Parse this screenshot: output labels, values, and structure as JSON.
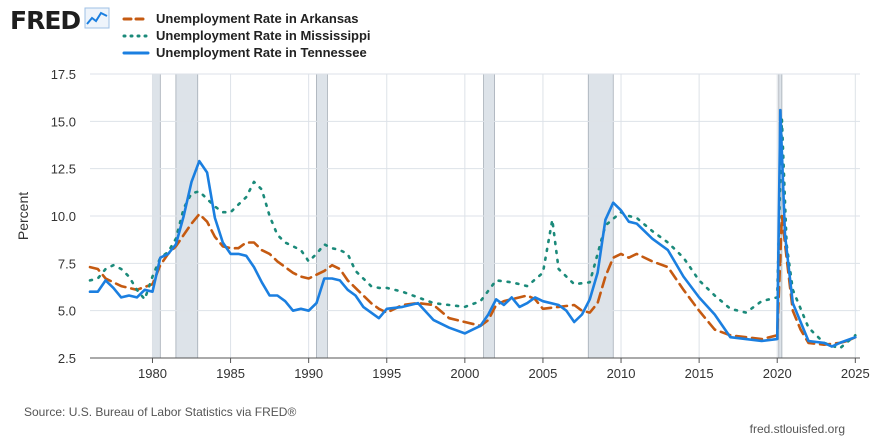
{
  "logo": {
    "text": "FRED",
    "icon": "line-chart-icon"
  },
  "footer": {
    "source": "Source: U.S. Bureau of Labor Statistics via FRED®",
    "site": "fred.stlouisfed.org"
  },
  "colors": {
    "arkansas": "#c55a11",
    "mississippi": "#1b8a7a",
    "tennessee": "#1b7fe0",
    "recession": "#dde3e9",
    "grid": "#dde2e8"
  },
  "chart_data": {
    "type": "line",
    "ylabel": "Percent",
    "xlabel": "",
    "xlim": [
      1976,
      2025.3
    ],
    "ylim": [
      2.5,
      17.5
    ],
    "yticks": [
      2.5,
      5.0,
      7.5,
      10.0,
      12.5,
      15.0,
      17.5
    ],
    "ytick_labels": [
      "2.5",
      "5.0",
      "7.5",
      "10.0",
      "12.5",
      "15.0",
      "17.5"
    ],
    "xticks": [
      1980,
      1985,
      1990,
      1995,
      2000,
      2005,
      2010,
      2015,
      2020,
      2025
    ],
    "xtick_labels": [
      "1980",
      "1985",
      "1990",
      "1995",
      "2000",
      "2005",
      "2010",
      "2015",
      "2020",
      "2025"
    ],
    "grid": true,
    "legend_position": "top-left",
    "recessions": [
      [
        1980.0,
        1980.5
      ],
      [
        1981.5,
        1982.9
      ],
      [
        1990.5,
        1991.2
      ],
      [
        2001.2,
        2001.9
      ],
      [
        2007.9,
        2009.5
      ],
      [
        2020.1,
        2020.3
      ]
    ],
    "series": [
      {
        "name": "Unemployment Rate in Arkansas",
        "style": "dashed",
        "color": "#c55a11",
        "points": [
          [
            1976,
            7.3
          ],
          [
            1976.5,
            7.2
          ],
          [
            1977,
            6.7
          ],
          [
            1978,
            6.3
          ],
          [
            1979,
            6.1
          ],
          [
            1980,
            6.4
          ],
          [
            1980.5,
            7.4
          ],
          [
            1981,
            8.0
          ],
          [
            1981.5,
            8.4
          ],
          [
            1982,
            9.0
          ],
          [
            1982.5,
            9.6
          ],
          [
            1983,
            10.1
          ],
          [
            1983.5,
            9.7
          ],
          [
            1984,
            8.9
          ],
          [
            1984.5,
            8.4
          ],
          [
            1985,
            8.3
          ],
          [
            1985.5,
            8.3
          ],
          [
            1986,
            8.6
          ],
          [
            1986.5,
            8.6
          ],
          [
            1987,
            8.2
          ],
          [
            1987.5,
            8.0
          ],
          [
            1988,
            7.6
          ],
          [
            1988.5,
            7.3
          ],
          [
            1989,
            7.0
          ],
          [
            1989.5,
            6.8
          ],
          [
            1990,
            6.7
          ],
          [
            1990.5,
            6.9
          ],
          [
            1991,
            7.1
          ],
          [
            1991.5,
            7.4
          ],
          [
            1992,
            7.2
          ],
          [
            1992.5,
            6.6
          ],
          [
            1993,
            6.2
          ],
          [
            1993.5,
            5.8
          ],
          [
            1994,
            5.4
          ],
          [
            1994.5,
            5.1
          ],
          [
            1995,
            4.9
          ],
          [
            1996,
            5.3
          ],
          [
            1997,
            5.4
          ],
          [
            1998,
            5.3
          ],
          [
            1999,
            4.6
          ],
          [
            2000,
            4.4
          ],
          [
            2001,
            4.2
          ],
          [
            2001.5,
            4.5
          ],
          [
            2002,
            5.3
          ],
          [
            2002.5,
            5.5
          ],
          [
            2003,
            5.6
          ],
          [
            2003.5,
            5.7
          ],
          [
            2004,
            5.8
          ],
          [
            2004.5,
            5.6
          ],
          [
            2005,
            5.1
          ],
          [
            2006,
            5.2
          ],
          [
            2007,
            5.3
          ],
          [
            2007.5,
            5.0
          ],
          [
            2008,
            4.9
          ],
          [
            2008.5,
            5.4
          ],
          [
            2009,
            6.8
          ],
          [
            2009.5,
            7.8
          ],
          [
            2010,
            8.0
          ],
          [
            2010.5,
            7.8
          ],
          [
            2011,
            8.0
          ],
          [
            2012,
            7.6
          ],
          [
            2013,
            7.3
          ],
          [
            2014,
            6.1
          ],
          [
            2015,
            5.0
          ],
          [
            2016,
            4.0
          ],
          [
            2017,
            3.7
          ],
          [
            2018,
            3.6
          ],
          [
            2019,
            3.5
          ],
          [
            2020,
            3.7
          ],
          [
            2020.3,
            10.0
          ],
          [
            2020.6,
            7.8
          ],
          [
            2021,
            5.0
          ],
          [
            2021.5,
            4.0
          ],
          [
            2022,
            3.3
          ],
          [
            2023,
            3.2
          ],
          [
            2024,
            3.3
          ],
          [
            2024.5,
            3.4
          ],
          [
            2025,
            3.6
          ]
        ]
      },
      {
        "name": "Unemployment Rate in Mississippi",
        "style": "dotted",
        "color": "#1b8a7a",
        "points": [
          [
            1976,
            6.6
          ],
          [
            1976.5,
            6.7
          ],
          [
            1977,
            7.2
          ],
          [
            1977.5,
            7.4
          ],
          [
            1978,
            7.2
          ],
          [
            1978.5,
            6.8
          ],
          [
            1979,
            6.1
          ],
          [
            1979.5,
            5.6
          ],
          [
            1980,
            6.8
          ],
          [
            1980.5,
            7.8
          ],
          [
            1981,
            8.1
          ],
          [
            1981.5,
            8.8
          ],
          [
            1982,
            10.4
          ],
          [
            1982.5,
            11.2
          ],
          [
            1983,
            11.3
          ],
          [
            1983.5,
            10.9
          ],
          [
            1984,
            10.5
          ],
          [
            1984.5,
            10.2
          ],
          [
            1985,
            10.2
          ],
          [
            1985.5,
            10.6
          ],
          [
            1986,
            11.0
          ],
          [
            1986.5,
            11.8
          ],
          [
            1987,
            11.4
          ],
          [
            1987.5,
            10.0
          ],
          [
            1988,
            9.0
          ],
          [
            1988.5,
            8.6
          ],
          [
            1989,
            8.4
          ],
          [
            1989.5,
            8.2
          ],
          [
            1990,
            7.6
          ],
          [
            1990.5,
            8.0
          ],
          [
            1991,
            8.5
          ],
          [
            1991.5,
            8.3
          ],
          [
            1992,
            8.2
          ],
          [
            1992.5,
            8.0
          ],
          [
            1993,
            7.1
          ],
          [
            1993.5,
            6.7
          ],
          [
            1994,
            6.3
          ],
          [
            1994.5,
            6.2
          ],
          [
            1995,
            6.2
          ],
          [
            1996,
            6.0
          ],
          [
            1997,
            5.7
          ],
          [
            1998,
            5.4
          ],
          [
            1999,
            5.3
          ],
          [
            2000,
            5.2
          ],
          [
            2001,
            5.5
          ],
          [
            2002,
            6.6
          ],
          [
            2003,
            6.5
          ],
          [
            2004,
            6.3
          ],
          [
            2005,
            7.0
          ],
          [
            2005.6,
            9.8
          ],
          [
            2006,
            7.2
          ],
          [
            2007,
            6.4
          ],
          [
            2008,
            6.5
          ],
          [
            2008.5,
            8.0
          ],
          [
            2009,
            9.5
          ],
          [
            2010,
            10.2
          ],
          [
            2010.5,
            10.0
          ],
          [
            2011,
            9.9
          ],
          [
            2012,
            9.2
          ],
          [
            2013,
            8.6
          ],
          [
            2014,
            7.8
          ],
          [
            2015,
            6.6
          ],
          [
            2016,
            5.8
          ],
          [
            2017,
            5.1
          ],
          [
            2018,
            4.9
          ],
          [
            2019,
            5.5
          ],
          [
            2020,
            5.7
          ],
          [
            2020.3,
            15.1
          ],
          [
            2020.6,
            8.5
          ],
          [
            2021,
            6.1
          ],
          [
            2022,
            4.1
          ],
          [
            2023,
            3.3
          ],
          [
            2024,
            3.0
          ],
          [
            2025,
            3.7
          ]
        ]
      },
      {
        "name": "Unemployment Rate in Tennessee",
        "style": "solid",
        "color": "#1b7fe0",
        "points": [
          [
            1976,
            6.0
          ],
          [
            1976.5,
            6.0
          ],
          [
            1977,
            6.6
          ],
          [
            1977.5,
            6.2
          ],
          [
            1978,
            5.7
          ],
          [
            1978.5,
            5.8
          ],
          [
            1979,
            5.7
          ],
          [
            1979.5,
            6.1
          ],
          [
            1980,
            6.0
          ],
          [
            1980.5,
            7.8
          ],
          [
            1981,
            8.0
          ],
          [
            1981.5,
            8.5
          ],
          [
            1982,
            10.0
          ],
          [
            1982.5,
            11.8
          ],
          [
            1983,
            12.9
          ],
          [
            1983.5,
            12.3
          ],
          [
            1984,
            9.9
          ],
          [
            1984.5,
            8.6
          ],
          [
            1985,
            8.0
          ],
          [
            1985.5,
            8.0
          ],
          [
            1986,
            7.9
          ],
          [
            1986.5,
            7.3
          ],
          [
            1987,
            6.5
          ],
          [
            1987.5,
            5.8
          ],
          [
            1988,
            5.8
          ],
          [
            1988.5,
            5.5
          ],
          [
            1989,
            5.0
          ],
          [
            1989.5,
            5.1
          ],
          [
            1990,
            5.0
          ],
          [
            1990.5,
            5.4
          ],
          [
            1991,
            6.7
          ],
          [
            1991.5,
            6.7
          ],
          [
            1992,
            6.6
          ],
          [
            1992.5,
            6.1
          ],
          [
            1993,
            5.8
          ],
          [
            1993.5,
            5.2
          ],
          [
            1994,
            4.9
          ],
          [
            1994.5,
            4.6
          ],
          [
            1995,
            5.1
          ],
          [
            1996,
            5.2
          ],
          [
            1997,
            5.4
          ],
          [
            1998,
            4.5
          ],
          [
            1999,
            4.1
          ],
          [
            2000,
            3.8
          ],
          [
            2000.5,
            4.0
          ],
          [
            2001,
            4.2
          ],
          [
            2001.5,
            4.8
          ],
          [
            2002,
            5.6
          ],
          [
            2002.5,
            5.3
          ],
          [
            2003,
            5.7
          ],
          [
            2003.5,
            5.2
          ],
          [
            2004,
            5.4
          ],
          [
            2004.5,
            5.7
          ],
          [
            2005,
            5.5
          ],
          [
            2006,
            5.3
          ],
          [
            2006.5,
            5.0
          ],
          [
            2007,
            4.4
          ],
          [
            2007.5,
            4.8
          ],
          [
            2008,
            5.6
          ],
          [
            2008.5,
            7.0
          ],
          [
            2009,
            9.8
          ],
          [
            2009.5,
            10.7
          ],
          [
            2010,
            10.3
          ],
          [
            2010.5,
            9.7
          ],
          [
            2011,
            9.6
          ],
          [
            2012,
            8.8
          ],
          [
            2013,
            8.2
          ],
          [
            2014,
            6.8
          ],
          [
            2015,
            5.7
          ],
          [
            2016,
            4.8
          ],
          [
            2017,
            3.6
          ],
          [
            2018,
            3.5
          ],
          [
            2019,
            3.4
          ],
          [
            2020,
            3.5
          ],
          [
            2020.2,
            15.6
          ],
          [
            2020.5,
            9.0
          ],
          [
            2021,
            5.4
          ],
          [
            2022,
            3.4
          ],
          [
            2023,
            3.3
          ],
          [
            2023.5,
            3.1
          ],
          [
            2024,
            3.3
          ],
          [
            2025,
            3.6
          ]
        ]
      }
    ]
  }
}
